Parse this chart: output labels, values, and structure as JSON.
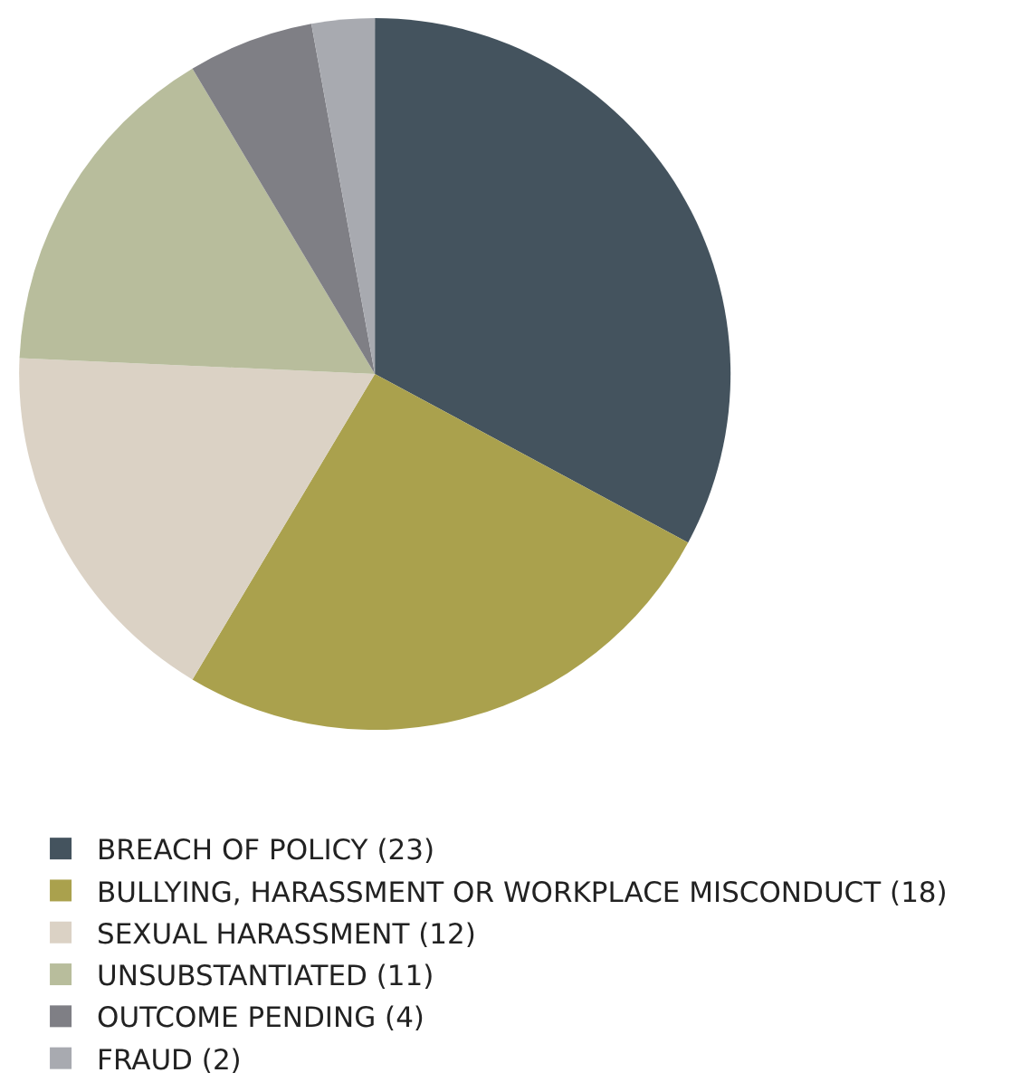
{
  "chart_data": {
    "type": "pie",
    "categories": [
      "BREACH OF POLICY (23)",
      "BULLYING, HARASSMENT OR WORKPLACE MISCONDUCT (18)",
      "SEXUAL HARASSMENT (12)",
      "UNSUBSTANTIATED (11)",
      "OUTCOME PENDING (4)",
      "FRAUD (2)"
    ],
    "values": [
      23,
      18,
      12,
      11,
      4,
      2
    ],
    "colors": [
      "#44535e",
      "#aaa14d",
      "#dbd2c5",
      "#b8bd9c",
      "#7f7f85",
      "#a8aab0"
    ],
    "legend": "bottom"
  }
}
